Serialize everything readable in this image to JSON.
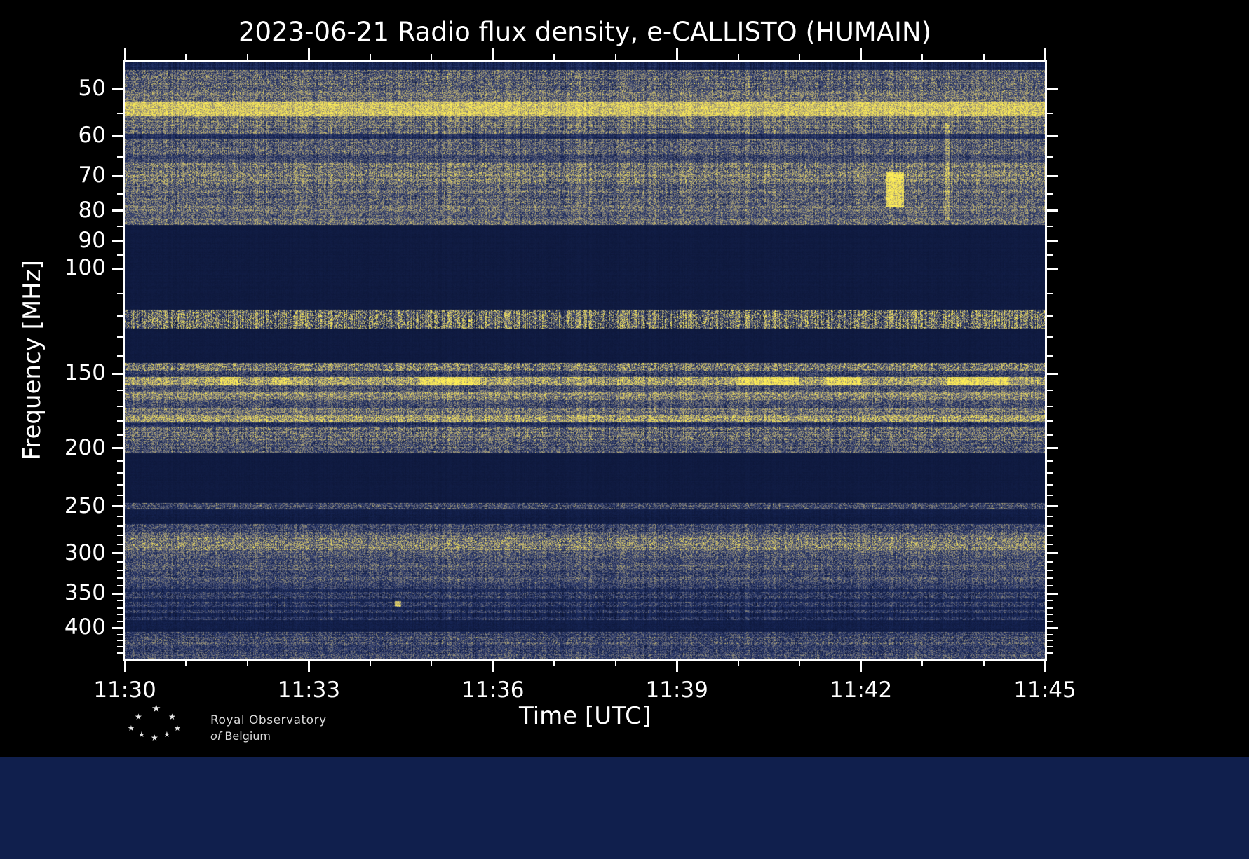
{
  "credit": {
    "line1": "Royal Observatory",
    "line2_prefix": "of",
    "line2_name": "Belgium",
    "star_glyph": "★"
  },
  "chart_data": {
    "type": "heatmap",
    "title": "2023-06-21 Radio flux density, e-CALLISTO (HUMAIN)",
    "xlabel": "Time [UTC]",
    "ylabel": "Frequency [MHz]",
    "time_start": "11:30",
    "time_end": "11:45",
    "time_span_min": 15,
    "x_ticks": [
      {
        "t": 0,
        "label": "11:30"
      },
      {
        "t": 3,
        "label": "11:33"
      },
      {
        "t": 6,
        "label": "11:36"
      },
      {
        "t": 9,
        "label": "11:39"
      },
      {
        "t": 12,
        "label": "11:42"
      },
      {
        "t": 15,
        "label": "11:45"
      }
    ],
    "x_minor_minutes": [
      1,
      2,
      4,
      5,
      7,
      8,
      10,
      11,
      13,
      14
    ],
    "y_scale": "log",
    "freq_min": 45,
    "freq_max": 450,
    "y_ticks": [
      {
        "f": 50,
        "label": "50"
      },
      {
        "f": 60,
        "label": "60"
      },
      {
        "f": 70,
        "label": "70"
      },
      {
        "f": 80,
        "label": "80"
      },
      {
        "f": 90,
        "label": "90"
      },
      {
        "f": 100,
        "label": "100"
      },
      {
        "f": 150,
        "label": "150"
      },
      {
        "f": 200,
        "label": "200"
      },
      {
        "f": 250,
        "label": "250"
      },
      {
        "f": 300,
        "label": "300"
      },
      {
        "f": 350,
        "label": "350"
      },
      {
        "f": 400,
        "label": "400"
      }
    ],
    "y_minor_freqs": [
      55,
      65,
      75,
      85,
      95,
      110,
      120,
      130,
      140,
      160,
      170,
      180,
      190,
      210,
      220,
      230,
      240,
      260,
      270,
      280,
      290,
      310,
      320,
      330,
      340,
      360,
      370,
      380,
      390,
      410,
      420,
      430,
      440
    ],
    "colormap": [
      [
        0.0,
        "#0b1434"
      ],
      [
        0.2,
        "#1a2a5e"
      ],
      [
        0.4,
        "#454e76"
      ],
      [
        0.6,
        "#8c8878"
      ],
      [
        0.78,
        "#c9ba6e"
      ],
      [
        1.0,
        "#ffef55"
      ]
    ],
    "bands": [
      {
        "f0": 45,
        "f1": 46.5,
        "lv": 0.15,
        "pv": 0.08
      },
      {
        "f0": 46.5,
        "f1": 50.5,
        "lv": 0.42,
        "rv": 0.08,
        "cv": 0.1,
        "pv": 0.3,
        "sp": 0.05,
        "sa": 0.3
      },
      {
        "f0": 50.5,
        "f1": 52.5,
        "lv": 0.5,
        "rv": 0.06,
        "pv": 0.3
      },
      {
        "f0": 52.5,
        "f1": 55.5,
        "lv": 0.8,
        "rv": 0.05,
        "pv": 0.25,
        "sp": 0.2,
        "sa": 0.2
      },
      {
        "f0": 55.5,
        "f1": 59.5,
        "lv": 0.48,
        "rv": 0.1,
        "cv": 0.12,
        "pv": 0.3
      },
      {
        "f0": 59.5,
        "f1": 60.5,
        "lv": 0.2,
        "pv": 0.12
      },
      {
        "f0": 60.5,
        "f1": 64.5,
        "lv": 0.44,
        "rv": 0.08,
        "cv": 0.1,
        "pv": 0.3
      },
      {
        "f0": 64.5,
        "f1": 66.5,
        "lv": 0.36,
        "rv": 0.06,
        "pv": 0.25
      },
      {
        "f0": 66.5,
        "f1": 72,
        "lv": 0.5,
        "rv": 0.1,
        "cv": 0.12,
        "pv": 0.32,
        "sp": 0.04,
        "sa": 0.25
      },
      {
        "f0": 72,
        "f1": 78,
        "lv": 0.45,
        "rv": 0.08,
        "cv": 0.1,
        "pv": 0.3
      },
      {
        "f0": 78,
        "f1": 80,
        "lv": 0.5,
        "rv": 0.06,
        "pv": 0.3
      },
      {
        "f0": 80,
        "f1": 82.5,
        "lv": 0.42,
        "rv": 0.06,
        "pv": 0.28
      },
      {
        "f0": 82.5,
        "f1": 84.5,
        "lv": 0.5,
        "rv": 0.05,
        "pv": 0.3,
        "sp": 0.05,
        "sa": 0.2
      },
      {
        "f0": 84.5,
        "f1": 117,
        "lv": 0.06,
        "rv": 0.01,
        "cv": 0.01,
        "pv": 0.02
      },
      {
        "f0": 117,
        "f1": 126,
        "lv": 0.3,
        "rv": 0.04,
        "cv": 0.3,
        "pv": 0.25,
        "sp": 0.4,
        "sa": 0.45
      },
      {
        "f0": 126,
        "f1": 144,
        "lv": 0.06,
        "rv": 0.01,
        "cv": 0.01,
        "pv": 0.02
      },
      {
        "f0": 144,
        "f1": 148,
        "lv": 0.45,
        "rv": 0.05,
        "cv": 0.15,
        "pv": 0.35,
        "sp": 0.25,
        "sa": 0.3
      },
      {
        "f0": 148,
        "f1": 152,
        "lv": 0.3,
        "pv": 0.25
      },
      {
        "f0": 152,
        "f1": 157,
        "lv": 0.66,
        "rv": 0.05,
        "cv": 0.12,
        "pv": 0.3,
        "sp": 0.25,
        "sa": 0.25
      },
      {
        "f0": 157,
        "f1": 161,
        "lv": 0.38,
        "pv": 0.28
      },
      {
        "f0": 161,
        "f1": 166,
        "lv": 0.58,
        "rv": 0.06,
        "cv": 0.1,
        "pv": 0.3,
        "sp": 0.08,
        "sa": 0.25
      },
      {
        "f0": 166,
        "f1": 171,
        "lv": 0.36,
        "pv": 0.28
      },
      {
        "f0": 171,
        "f1": 176,
        "lv": 0.5,
        "rv": 0.06,
        "pv": 0.3
      },
      {
        "f0": 176,
        "f1": 181,
        "lv": 0.62,
        "rv": 0.05,
        "cv": 0.1,
        "pv": 0.32,
        "sp": 0.2,
        "sa": 0.3
      },
      {
        "f0": 181,
        "f1": 184,
        "lv": 0.22,
        "pv": 0.18
      },
      {
        "f0": 184,
        "f1": 194,
        "lv": 0.45,
        "rv": 0.08,
        "cv": 0.1,
        "pv": 0.32,
        "sp": 0.05,
        "sa": 0.25
      },
      {
        "f0": 194,
        "f1": 204,
        "lv": 0.4,
        "rv": 0.08,
        "pv": 0.3
      },
      {
        "f0": 204,
        "f1": 247,
        "lv": 0.06,
        "rv": 0.01,
        "cv": 0.01,
        "pv": 0.02
      },
      {
        "f0": 247,
        "f1": 253,
        "lv": 0.33,
        "rv": 0.06,
        "pv": 0.3,
        "sp": 0.05,
        "sa": 0.2
      },
      {
        "f0": 253,
        "f1": 268,
        "lv": 0.08,
        "rv": 0.02,
        "cv": 0.02,
        "pv": 0.04
      },
      {
        "f0": 268,
        "f1": 276,
        "lv": 0.32,
        "rv": 0.06,
        "pv": 0.28
      },
      {
        "f0": 276,
        "f1": 282,
        "lv": 0.44,
        "rv": 0.06,
        "pv": 0.3
      },
      {
        "f0": 282,
        "f1": 296,
        "lv": 0.5,
        "rv": 0.07,
        "cv": 0.1,
        "pv": 0.3,
        "sp": 0.12,
        "sa": 0.35
      },
      {
        "f0": 296,
        "f1": 304,
        "lv": 0.4,
        "pv": 0.28
      },
      {
        "f0": 304,
        "f1": 312,
        "lv": 0.34,
        "pv": 0.26
      },
      {
        "f0": 312,
        "f1": 320,
        "lv": 0.42,
        "rv": 0.06,
        "pv": 0.28
      },
      {
        "f0": 320,
        "f1": 328,
        "lv": 0.33,
        "pv": 0.26
      },
      {
        "f0": 328,
        "f1": 336,
        "lv": 0.38,
        "pv": 0.26
      },
      {
        "f0": 336,
        "f1": 344,
        "lv": 0.3,
        "pv": 0.24
      },
      {
        "f0": 344,
        "f1": 348,
        "lv": 0.16,
        "pv": 0.1
      },
      {
        "f0": 348,
        "f1": 358,
        "lv": 0.3,
        "rv": 0.08,
        "pv": 0.26
      },
      {
        "f0": 358,
        "f1": 362,
        "lv": 0.15,
        "pv": 0.08
      },
      {
        "f0": 362,
        "f1": 368,
        "lv": 0.28,
        "pv": 0.24
      },
      {
        "f0": 368,
        "f1": 372,
        "lv": 0.13,
        "pv": 0.07
      },
      {
        "f0": 372,
        "f1": 378,
        "lv": 0.28,
        "pv": 0.24
      },
      {
        "f0": 378,
        "f1": 383,
        "lv": 0.12,
        "pv": 0.07
      },
      {
        "f0": 383,
        "f1": 388,
        "lv": 0.26,
        "pv": 0.22
      },
      {
        "f0": 388,
        "f1": 406,
        "lv": 0.1,
        "rv": 0.02,
        "cv": 0.02,
        "pv": 0.05
      },
      {
        "f0": 406,
        "f1": 414,
        "lv": 0.3,
        "rv": 0.06,
        "pv": 0.26
      },
      {
        "f0": 414,
        "f1": 426,
        "lv": 0.34,
        "rv": 0.08,
        "pv": 0.28,
        "sp": 0.04,
        "sa": 0.2
      },
      {
        "f0": 426,
        "f1": 436,
        "lv": 0.28,
        "pv": 0.24
      },
      {
        "f0": 436,
        "f1": 450.1,
        "lv": 0.32,
        "rv": 0.08,
        "pv": 0.26
      }
    ],
    "features": [
      {
        "t0": 12.4,
        "t1": 12.7,
        "f0": 69,
        "f1": 79,
        "a": 0.5
      },
      {
        "t0": 13.38,
        "t1": 13.44,
        "f0": 57,
        "f1": 83,
        "a": 0.18
      },
      {
        "t0": 1.55,
        "t1": 1.85,
        "f0": 152,
        "f1": 157,
        "a": 0.25
      },
      {
        "t0": 2.4,
        "t1": 2.7,
        "f0": 152,
        "f1": 157,
        "a": 0.2
      },
      {
        "t0": 4.8,
        "t1": 5.8,
        "f0": 152,
        "f1": 157,
        "a": 0.3
      },
      {
        "t0": 10.0,
        "t1": 11.0,
        "f0": 152,
        "f1": 157,
        "a": 0.3
      },
      {
        "t0": 11.4,
        "t1": 12.0,
        "f0": 152,
        "f1": 157,
        "a": 0.28
      },
      {
        "t0": 13.4,
        "t1": 14.4,
        "f0": 152,
        "f1": 157,
        "a": 0.3
      },
      {
        "t0": 4.4,
        "t1": 4.5,
        "f0": 361,
        "f1": 368,
        "a": 0.55
      }
    ]
  }
}
